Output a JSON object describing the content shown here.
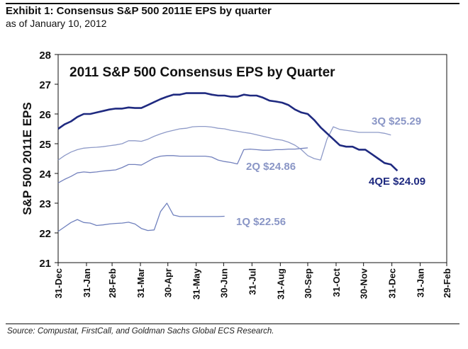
{
  "header": {
    "title": "Exhibit 1: Consensus S&P 500 2011E EPS by quarter",
    "subtitle": "as of January 10, 2012"
  },
  "footer": {
    "source": "Source: Compustat, FirstCall, and Goldman Sachs Global ECS Research."
  },
  "colors": {
    "q4": "#1f2a80",
    "q3": "#8e9ac8",
    "q2": "#7381bd",
    "q1": "#6f80bd",
    "label_light": "#8a96c6",
    "axis": "#111111"
  },
  "chart_data": {
    "type": "line",
    "title": "2011 S&P 500 Consensus EPS by Quarter",
    "xlabel": "",
    "ylabel": "S&P 500 2011E EPS",
    "ylim": [
      21,
      28
    ],
    "yticks": [
      21,
      22,
      23,
      24,
      25,
      26,
      27,
      28
    ],
    "x_unit": "days since 31-Dec-2010",
    "xlim": [
      0,
      425
    ],
    "xticks": [
      {
        "day": 0,
        "label": "31-Dec"
      },
      {
        "day": 31,
        "label": "31-Jan"
      },
      {
        "day": 59,
        "label": "28-Feb"
      },
      {
        "day": 90,
        "label": "31-Mar"
      },
      {
        "day": 120,
        "label": "30-Apr"
      },
      {
        "day": 151,
        "label": "31-May"
      },
      {
        "day": 181,
        "label": "30-Jun"
      },
      {
        "day": 212,
        "label": "31-Jul"
      },
      {
        "day": 243,
        "label": "31-Aug"
      },
      {
        "day": 273,
        "label": "30-Sep"
      },
      {
        "day": 304,
        "label": "31-Oct"
      },
      {
        "day": 334,
        "label": "30-Nov"
      },
      {
        "day": 365,
        "label": "31-Dec"
      },
      {
        "day": 396,
        "label": "31-Jan"
      },
      {
        "day": 425,
        "label": "29-Feb"
      }
    ],
    "grid": false,
    "series": [
      {
        "name": "4QE",
        "label": "4QE $24.09",
        "final_value": 24.09,
        "color_key": "q4",
        "x": [
          0,
          7,
          14,
          21,
          28,
          35,
          42,
          49,
          56,
          63,
          70,
          77,
          84,
          91,
          98,
          105,
          112,
          119,
          126,
          133,
          140,
          147,
          154,
          161,
          168,
          175,
          182,
          189,
          196,
          203,
          210,
          217,
          224,
          231,
          238,
          245,
          252,
          259,
          266,
          273,
          280,
          287,
          294,
          301,
          308,
          315,
          322,
          329,
          336,
          343,
          350,
          357,
          364,
          371
        ],
        "values": [
          25.5,
          25.65,
          25.75,
          25.9,
          26.0,
          26.0,
          26.05,
          26.1,
          26.15,
          26.18,
          26.18,
          26.22,
          26.2,
          26.2,
          26.3,
          26.4,
          26.5,
          26.58,
          26.65,
          26.65,
          26.7,
          26.7,
          26.7,
          26.7,
          26.65,
          26.62,
          26.62,
          26.58,
          26.58,
          26.65,
          26.62,
          26.62,
          26.55,
          26.45,
          26.42,
          26.38,
          26.3,
          26.15,
          26.05,
          26.0,
          25.8,
          25.55,
          25.35,
          25.15,
          24.95,
          24.9,
          24.9,
          24.8,
          24.8,
          24.65,
          24.5,
          24.35,
          24.3,
          24.09
        ]
      },
      {
        "name": "3Q",
        "label": "3Q $25.29",
        "final_value": 25.29,
        "color_key": "q3",
        "x": [
          0,
          7,
          14,
          21,
          28,
          35,
          42,
          49,
          56,
          63,
          70,
          77,
          84,
          91,
          98,
          105,
          112,
          119,
          126,
          133,
          140,
          147,
          154,
          161,
          168,
          175,
          182,
          189,
          196,
          203,
          210,
          217,
          224,
          231,
          238,
          245,
          252,
          259,
          266,
          273,
          280,
          287,
          294,
          301,
          308,
          315,
          322,
          329,
          336,
          343,
          350,
          357,
          364
        ],
        "values": [
          24.45,
          24.6,
          24.72,
          24.8,
          24.85,
          24.87,
          24.88,
          24.9,
          24.93,
          24.96,
          25.0,
          25.1,
          25.1,
          25.08,
          25.15,
          25.25,
          25.33,
          25.4,
          25.45,
          25.5,
          25.52,
          25.57,
          25.58,
          25.58,
          25.56,
          25.52,
          25.5,
          25.45,
          25.42,
          25.38,
          25.35,
          25.3,
          25.25,
          25.2,
          25.15,
          25.12,
          25.05,
          24.95,
          24.8,
          24.6,
          24.5,
          24.45,
          25.15,
          25.57,
          25.48,
          25.45,
          25.42,
          25.38,
          25.38,
          25.38,
          25.38,
          25.35,
          25.29
        ]
      },
      {
        "name": "2Q",
        "label": "2Q $24.86",
        "final_value": 24.86,
        "color_key": "q2",
        "x": [
          0,
          7,
          14,
          21,
          28,
          35,
          42,
          49,
          56,
          63,
          70,
          77,
          84,
          91,
          98,
          105,
          112,
          119,
          126,
          133,
          140,
          147,
          154,
          161,
          168,
          175,
          182,
          189,
          196,
          203,
          210,
          217,
          224,
          231,
          238,
          245,
          252,
          259,
          266,
          273
        ],
        "values": [
          23.68,
          23.8,
          23.9,
          24.02,
          24.05,
          24.03,
          24.05,
          24.08,
          24.1,
          24.12,
          24.2,
          24.3,
          24.3,
          24.28,
          24.4,
          24.52,
          24.58,
          24.6,
          24.6,
          24.58,
          24.58,
          24.58,
          24.58,
          24.58,
          24.55,
          24.45,
          24.4,
          24.37,
          24.32,
          24.8,
          24.82,
          24.8,
          24.78,
          24.78,
          24.8,
          24.8,
          24.82,
          24.82,
          24.84,
          24.86
        ]
      },
      {
        "name": "1Q",
        "label": "1Q $22.56",
        "final_value": 22.56,
        "color_key": "q1",
        "x": [
          0,
          7,
          14,
          21,
          28,
          35,
          42,
          49,
          56,
          63,
          70,
          77,
          84,
          91,
          98,
          105,
          112,
          119,
          126,
          133,
          140,
          147,
          154,
          161,
          168,
          175,
          182
        ],
        "values": [
          22.05,
          22.2,
          22.35,
          22.45,
          22.35,
          22.33,
          22.25,
          22.27,
          22.3,
          22.32,
          22.33,
          22.36,
          22.3,
          22.15,
          22.08,
          22.1,
          22.72,
          23.0,
          22.6,
          22.55,
          22.55,
          22.55,
          22.55,
          22.55,
          22.55,
          22.55,
          22.56
        ]
      }
    ]
  }
}
